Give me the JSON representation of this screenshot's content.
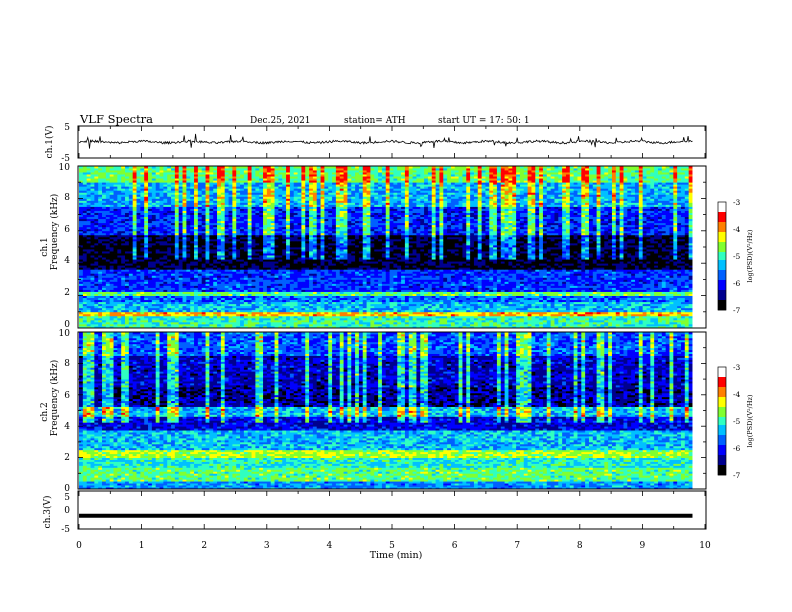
{
  "header": {
    "title": "VLF  Spectra",
    "date": "Dec.25, 2021",
    "station": "station= ATH",
    "start": "start  UT  =    17: 50: 1"
  },
  "chart_data": [
    {
      "type": "line",
      "panel": "ch1-waveform",
      "ylabel": "ch.1(V)",
      "ylim": [
        -5,
        5
      ],
      "yticks": [
        "5",
        "-5"
      ],
      "x_range_min": [
        0,
        9.8
      ],
      "note_level": "signal hovers near 0 V with spikes up to about +2 V and down to about -2 V",
      "trace_color": "#000000"
    },
    {
      "type": "heatmap",
      "panel": "ch1-spectrogram",
      "ylabel_line1": "ch.1",
      "ylabel_line2": "Frequency  (kHz)",
      "ylim": [
        0,
        10
      ],
      "yticks": [
        "0",
        "2",
        "4",
        "6",
        "8",
        "10"
      ],
      "x_range_min": [
        0,
        9.8
      ],
      "value_range_logpsd": [
        -7,
        -3
      ],
      "frequency_bands": [
        {
          "f_khz": [
            0,
            0.7
          ],
          "logpsd": -4.8
        },
        {
          "f_khz": [
            0.7,
            1.0
          ],
          "logpsd": -3.8
        },
        {
          "f_khz": [
            1.0,
            1.6
          ],
          "logpsd": -5.2
        },
        {
          "f_khz": [
            1.6,
            2.0
          ],
          "logpsd": -5.6
        },
        {
          "f_khz": [
            2.0,
            2.3
          ],
          "logpsd": -4.6
        },
        {
          "f_khz": [
            2.3,
            3.6
          ],
          "logpsd": -5.8
        },
        {
          "f_khz": [
            3.6,
            5.8
          ],
          "logpsd": -6.7
        },
        {
          "f_khz": [
            5.8,
            7.5
          ],
          "logpsd": -5.9
        },
        {
          "f_khz": [
            7.5,
            9.0
          ],
          "logpsd": -5.3
        },
        {
          "f_khz": [
            9.0,
            10.0
          ],
          "logpsd": -4.6
        }
      ]
    },
    {
      "type": "heatmap",
      "panel": "ch2-spectrogram",
      "ylabel_line1": "ch.2",
      "ylabel_line2": "Frequency  (kHz)",
      "ylim": [
        0,
        10
      ],
      "yticks": [
        "0",
        "2",
        "4",
        "6",
        "8",
        "10"
      ],
      "x_range_min": [
        0,
        9.8
      ],
      "value_range_logpsd": [
        -7,
        -3
      ],
      "frequency_bands": [
        {
          "f_khz": [
            0,
            0.5
          ],
          "logpsd": -5.4
        },
        {
          "f_khz": [
            0.5,
            1.4
          ],
          "logpsd": -4.6
        },
        {
          "f_khz": [
            1.4,
            2.0
          ],
          "logpsd": -4.9
        },
        {
          "f_khz": [
            2.0,
            2.5
          ],
          "logpsd": -4.3
        },
        {
          "f_khz": [
            2.5,
            3.8
          ],
          "logpsd": -5.2
        },
        {
          "f_khz": [
            3.8,
            4.6
          ],
          "logpsd": -6.1
        },
        {
          "f_khz": [
            4.6,
            5.2
          ],
          "logpsd": -5.2
        },
        {
          "f_khz": [
            5.2,
            6.5
          ],
          "logpsd": -6.4
        },
        {
          "f_khz": [
            6.5,
            8.5
          ],
          "logpsd": -6.2
        },
        {
          "f_khz": [
            8.5,
            10.0
          ],
          "logpsd": -5.7
        }
      ]
    },
    {
      "type": "line",
      "panel": "ch3-waveform",
      "ylabel": "ch.3(V)",
      "xlabel": "Time  (min)",
      "ylim": [
        -5,
        5
      ],
      "yticks": [
        "5",
        "0",
        "-5"
      ],
      "xlim": [
        0,
        10
      ],
      "xticks": [
        "0",
        "1",
        "2",
        "3",
        "4",
        "5",
        "6",
        "7",
        "8",
        "9",
        "10"
      ],
      "x_range_min": [
        0,
        9.8
      ],
      "level_v": -1.5,
      "trace_color": "#000000"
    }
  ],
  "colorbars": [
    {
      "label": "log(PSD)(V²/Hz)",
      "ticks": [
        "-3",
        "-4",
        "-5",
        "-6",
        "-7"
      ],
      "range": [
        -7,
        -3
      ]
    },
    {
      "label": "log(PSD)(V²/Hz)",
      "ticks": [
        "-3",
        "-4",
        "-5",
        "-6",
        "-7"
      ],
      "range": [
        -7,
        -3
      ]
    }
  ],
  "colormap": [
    "#000000",
    "#00008f",
    "#0000ff",
    "#0060ff",
    "#00c0ff",
    "#30ffc0",
    "#80ff30",
    "#ffff00",
    "#ff8000",
    "#ff0000",
    "#ffffff"
  ]
}
